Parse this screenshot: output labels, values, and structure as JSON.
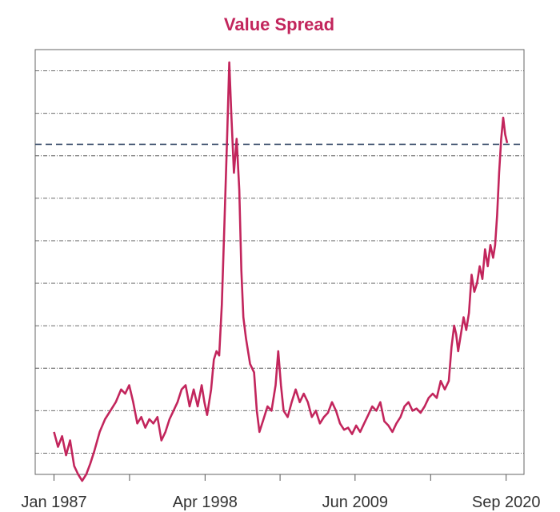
{
  "chart_data": {
    "type": "line",
    "title": "Value Spread",
    "xlabel": "",
    "ylabel": "",
    "grid": true,
    "x_ticks": [
      {
        "label": "Jan 1987",
        "year": 1987.0
      },
      {
        "label": "Apr 1998",
        "year": 1998.25
      },
      {
        "label": "Jun 2009",
        "year": 2009.42
      },
      {
        "label": "Sep 2020",
        "year": 2020.67
      }
    ],
    "x_range": [
      1985.6,
      2022.0
    ],
    "y_range": [
      0.5,
      10.5
    ],
    "reference_line": {
      "value": 8.27,
      "style": "dashed",
      "color": "#3b4f6b"
    },
    "series": [
      {
        "name": "Value Spread",
        "color": "#c2255c",
        "points": [
          [
            1987.0,
            1.5
          ],
          [
            1987.3,
            1.15
          ],
          [
            1987.6,
            1.4
          ],
          [
            1987.9,
            0.95
          ],
          [
            1988.2,
            1.3
          ],
          [
            1988.5,
            0.7
          ],
          [
            1988.8,
            0.5
          ],
          [
            1989.1,
            0.35
          ],
          [
            1989.4,
            0.5
          ],
          [
            1989.7,
            0.75
          ],
          [
            1990.0,
            1.05
          ],
          [
            1990.4,
            1.5
          ],
          [
            1990.8,
            1.8
          ],
          [
            1991.2,
            2.0
          ],
          [
            1991.6,
            2.2
          ],
          [
            1992.0,
            2.5
          ],
          [
            1992.3,
            2.4
          ],
          [
            1992.6,
            2.6
          ],
          [
            1992.9,
            2.2
          ],
          [
            1993.2,
            1.7
          ],
          [
            1993.5,
            1.85
          ],
          [
            1993.8,
            1.6
          ],
          [
            1994.1,
            1.8
          ],
          [
            1994.4,
            1.7
          ],
          [
            1994.7,
            1.85
          ],
          [
            1995.0,
            1.3
          ],
          [
            1995.3,
            1.5
          ],
          [
            1995.6,
            1.8
          ],
          [
            1995.9,
            2.0
          ],
          [
            1996.2,
            2.2
          ],
          [
            1996.5,
            2.5
          ],
          [
            1996.8,
            2.6
          ],
          [
            1997.1,
            2.1
          ],
          [
            1997.4,
            2.5
          ],
          [
            1997.7,
            2.1
          ],
          [
            1998.0,
            2.6
          ],
          [
            1998.2,
            2.2
          ],
          [
            1998.4,
            1.9
          ],
          [
            1998.7,
            2.5
          ],
          [
            1998.9,
            3.2
          ],
          [
            1999.1,
            3.4
          ],
          [
            1999.3,
            3.3
          ],
          [
            1999.5,
            4.5
          ],
          [
            1999.7,
            6.5
          ],
          [
            1999.9,
            8.5
          ],
          [
            2000.05,
            10.2
          ],
          [
            2000.2,
            9.0
          ],
          [
            2000.4,
            7.6
          ],
          [
            2000.6,
            8.4
          ],
          [
            2000.8,
            7.2
          ],
          [
            2000.95,
            5.3
          ],
          [
            2001.1,
            4.2
          ],
          [
            2001.3,
            3.7
          ],
          [
            2001.6,
            3.1
          ],
          [
            2001.9,
            2.9
          ],
          [
            2002.1,
            2.0
          ],
          [
            2002.3,
            1.5
          ],
          [
            2002.6,
            1.8
          ],
          [
            2002.9,
            2.1
          ],
          [
            2003.2,
            2.0
          ],
          [
            2003.5,
            2.6
          ],
          [
            2003.7,
            3.4
          ],
          [
            2003.9,
            2.6
          ],
          [
            2004.1,
            2.0
          ],
          [
            2004.4,
            1.85
          ],
          [
            2004.7,
            2.2
          ],
          [
            2005.0,
            2.5
          ],
          [
            2005.3,
            2.2
          ],
          [
            2005.6,
            2.4
          ],
          [
            2005.9,
            2.2
          ],
          [
            2006.2,
            1.85
          ],
          [
            2006.5,
            2.0
          ],
          [
            2006.8,
            1.7
          ],
          [
            2007.1,
            1.85
          ],
          [
            2007.4,
            1.95
          ],
          [
            2007.7,
            2.2
          ],
          [
            2008.0,
            2.0
          ],
          [
            2008.3,
            1.7
          ],
          [
            2008.6,
            1.55
          ],
          [
            2008.9,
            1.6
          ],
          [
            2009.2,
            1.45
          ],
          [
            2009.5,
            1.65
          ],
          [
            2009.8,
            1.5
          ],
          [
            2010.1,
            1.7
          ],
          [
            2010.4,
            1.9
          ],
          [
            2010.7,
            2.1
          ],
          [
            2011.0,
            2.0
          ],
          [
            2011.3,
            2.2
          ],
          [
            2011.6,
            1.75
          ],
          [
            2011.9,
            1.65
          ],
          [
            2012.2,
            1.5
          ],
          [
            2012.5,
            1.7
          ],
          [
            2012.8,
            1.85
          ],
          [
            2013.1,
            2.1
          ],
          [
            2013.4,
            2.2
          ],
          [
            2013.7,
            2.0
          ],
          [
            2014.0,
            2.05
          ],
          [
            2014.3,
            1.95
          ],
          [
            2014.6,
            2.1
          ],
          [
            2014.9,
            2.3
          ],
          [
            2015.2,
            2.4
          ],
          [
            2015.5,
            2.3
          ],
          [
            2015.8,
            2.7
          ],
          [
            2016.1,
            2.5
          ],
          [
            2016.4,
            2.7
          ],
          [
            2016.6,
            3.5
          ],
          [
            2016.8,
            4.0
          ],
          [
            2016.95,
            3.8
          ],
          [
            2017.1,
            3.4
          ],
          [
            2017.3,
            3.8
          ],
          [
            2017.5,
            4.2
          ],
          [
            2017.7,
            3.9
          ],
          [
            2017.9,
            4.3
          ],
          [
            2018.1,
            5.2
          ],
          [
            2018.3,
            4.8
          ],
          [
            2018.5,
            5.0
          ],
          [
            2018.7,
            5.4
          ],
          [
            2018.9,
            5.1
          ],
          [
            2019.1,
            5.8
          ],
          [
            2019.3,
            5.4
          ],
          [
            2019.5,
            5.9
          ],
          [
            2019.7,
            5.6
          ],
          [
            2019.85,
            5.9
          ],
          [
            2020.0,
            6.6
          ],
          [
            2020.15,
            7.6
          ],
          [
            2020.3,
            8.4
          ],
          [
            2020.45,
            8.9
          ],
          [
            2020.6,
            8.5
          ],
          [
            2020.75,
            8.3
          ]
        ]
      }
    ]
  }
}
